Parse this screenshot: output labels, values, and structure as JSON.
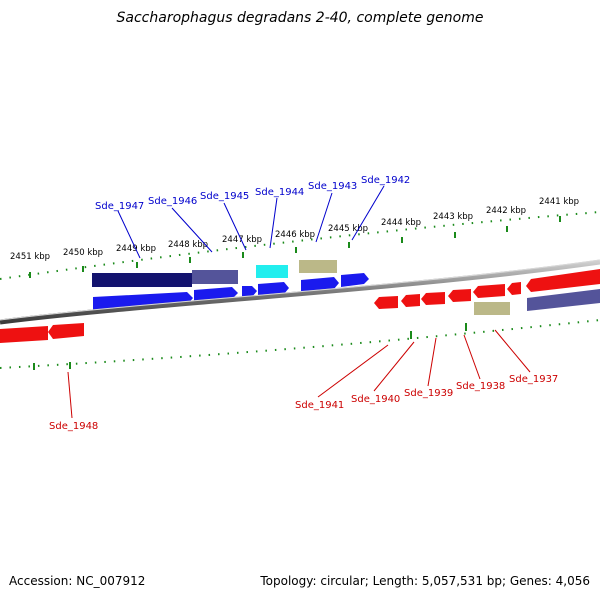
{
  "title": "Saccharophagus degradans 2-40, complete genome",
  "footer": {
    "accession": "Accession: NC_007912",
    "summary": "Topology: circular; Length: 5,057,531 bp; Genes: 4,056"
  },
  "ticks": [
    "2451 kbp",
    "2450 kbp",
    "2449 kbp",
    "2448 kbp",
    "2447 kbp",
    "2446 kbp",
    "2445 kbp",
    "2444 kbp",
    "2443 kbp",
    "2442 kbp",
    "2441 kbp"
  ],
  "forward_genes": [
    "Sde_1947",
    "Sde_1946",
    "Sde_1945",
    "Sde_1944",
    "Sde_1943",
    "Sde_1942"
  ],
  "reverse_genes": [
    "Sde_1948",
    "Sde_1941",
    "Sde_1940",
    "Sde_1939",
    "Sde_1938",
    "Sde_1937"
  ],
  "colors": {
    "forward_cds": "#1a1aee",
    "reverse_cds": "#ee1111",
    "dark_navy": "#13136e",
    "slate": "#54549a",
    "cyan": "#22eeee",
    "khaki": "#bbb888",
    "backbone": "#808080",
    "tick": "#1a8a1a",
    "forward_label": "#0000cc",
    "reverse_label": "#cc0000"
  }
}
